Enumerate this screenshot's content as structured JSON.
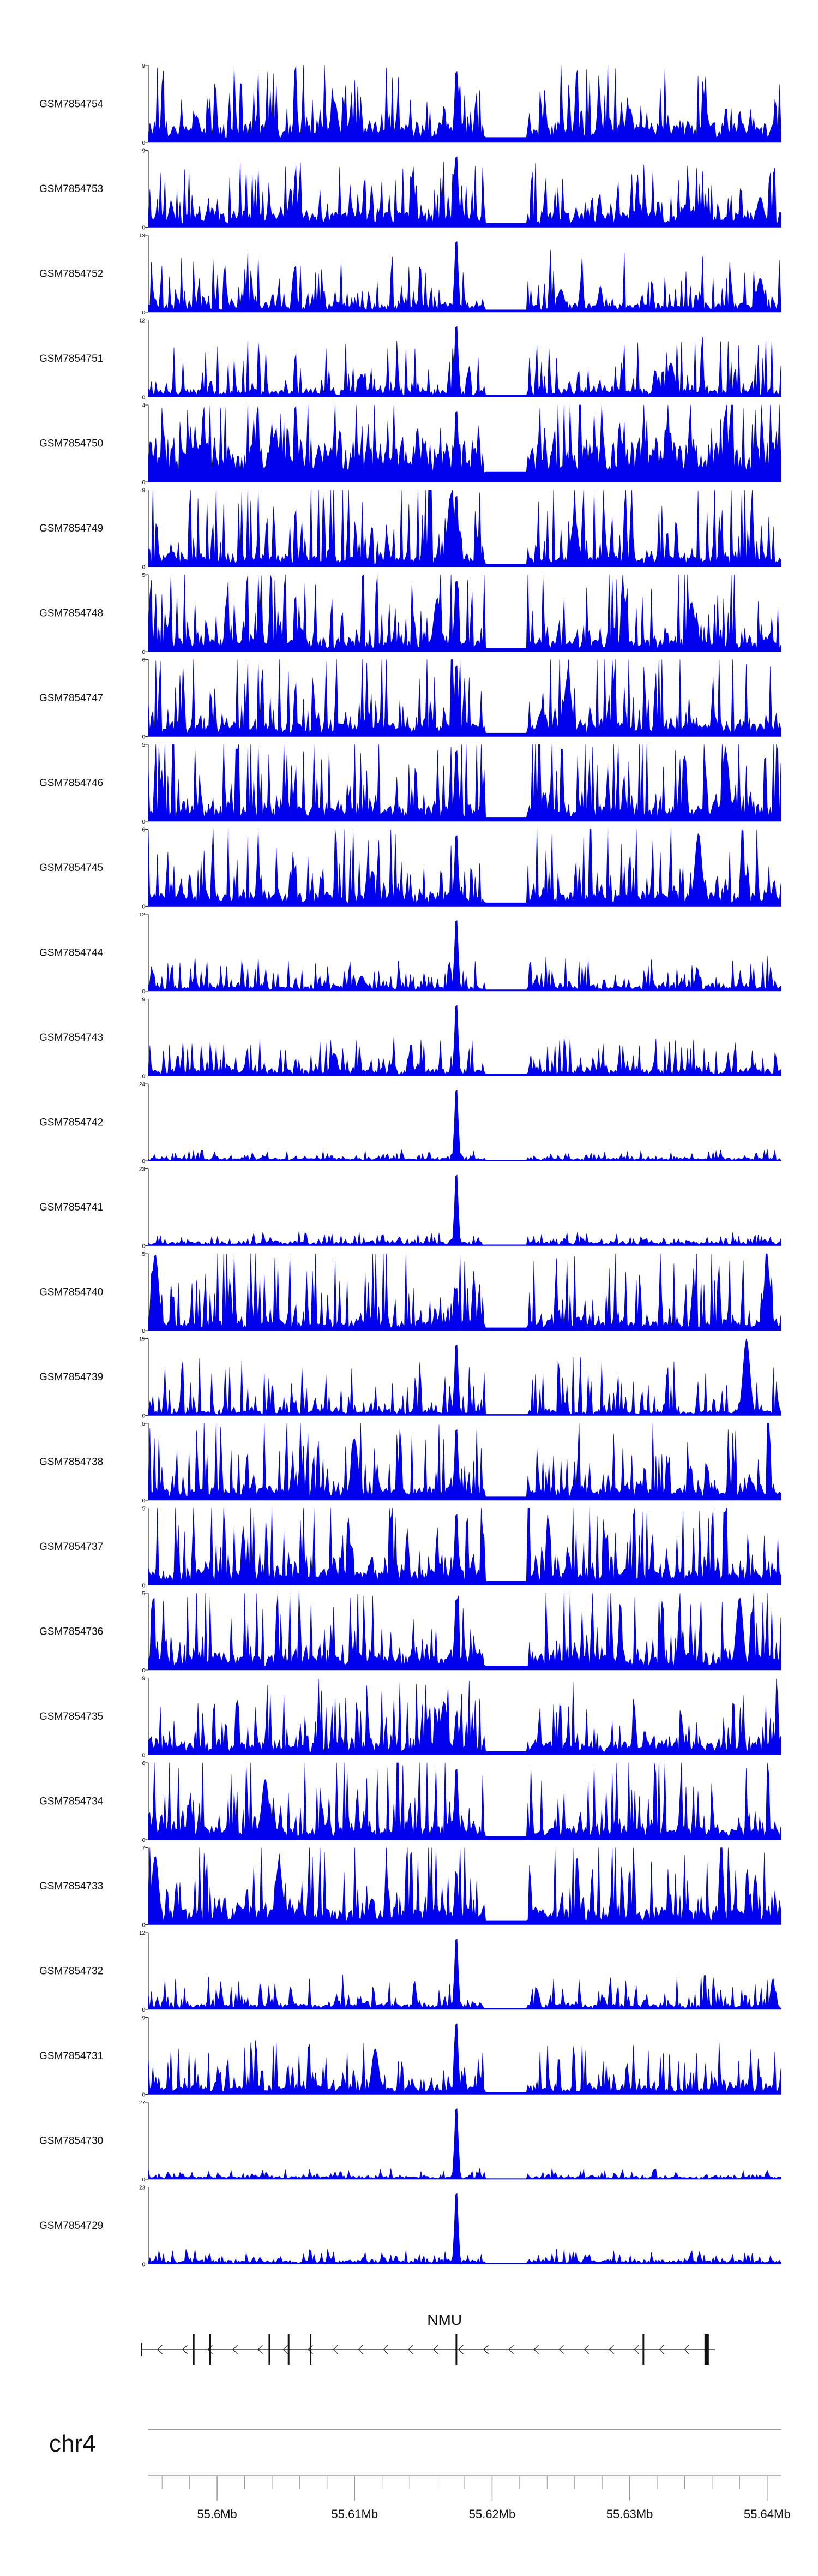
{
  "chart_data": {
    "type": "area",
    "title": "",
    "chromosome": "chr4",
    "gene": {
      "name": "NMU",
      "strand": "-",
      "start": 55.5945,
      "end": 55.6362,
      "exons": [
        55.5983,
        55.5995,
        55.6038,
        55.6052,
        55.6068,
        55.6174,
        55.631,
        55.6356
      ]
    },
    "xlim": [
      55.595,
      55.641
    ],
    "xticks": [
      55.6,
      55.61,
      55.62,
      55.63,
      55.64
    ],
    "xtick_labels": [
      "55.6Mb",
      "55.61Mb",
      "55.62Mb",
      "55.63Mb",
      "55.64Mb"
    ],
    "xlabel": "",
    "ylabel": "",
    "gap_region": [
      55.6195,
      55.6225
    ],
    "tracks": [
      {
        "name": "GSM7854754",
        "ymax": 9,
        "peak": 9,
        "bg": 0.22,
        "noise": 0.55,
        "vars": [
          [
            55.6085,
            0.55
          ],
          [
            55.5985,
            0.35
          ],
          [
            55.6355,
            0.45
          ],
          [
            55.63,
            0.45
          ]
        ]
      },
      {
        "name": "GSM7854753",
        "ymax": 9,
        "peak": 9,
        "bg": 0.18,
        "noise": 0.45,
        "vars": [
          [
            55.6195,
            0.3
          ],
          [
            55.6395,
            0.4
          ]
        ]
      },
      {
        "name": "GSM7854752",
        "ymax": 13,
        "peak": 13,
        "bg": 0.1,
        "noise": 0.45,
        "vars": [
          [
            55.6395,
            0.45
          ],
          [
            55.625,
            0.3
          ]
        ]
      },
      {
        "name": "GSM7854751",
        "ymax": 12,
        "peak": 12,
        "bg": 0.08,
        "noise": 0.45,
        "vars": [
          [
            55.6105,
            0.3
          ],
          [
            55.633,
            0.45
          ]
        ]
      },
      {
        "name": "GSM7854750",
        "ymax": 4,
        "peak": 4,
        "bg": 0.45,
        "noise": 0.55,
        "vars": [
          [
            55.604,
            0.6
          ]
        ]
      },
      {
        "name": "GSM7854749",
        "ymax": 9,
        "peak": 9,
        "bg": 0.12,
        "noise": 0.75,
        "vars": [
          [
            55.617,
            0.95
          ],
          [
            55.626,
            0.65
          ]
        ]
      },
      {
        "name": "GSM7854748",
        "ymax": 5,
        "peak": 5,
        "bg": 0.14,
        "noise": 0.75,
        "vars": [
          [
            55.616,
            0.7
          ],
          [
            55.6345,
            0.65
          ]
        ]
      },
      {
        "name": "GSM7854747",
        "ymax": 6,
        "peak": 6,
        "bg": 0.15,
        "noise": 0.75,
        "vars": [
          [
            55.6255,
            0.8
          ]
        ]
      },
      {
        "name": "GSM7854746",
        "ymax": 5,
        "peak": 5,
        "bg": 0.18,
        "noise": 0.75,
        "vars": [
          [
            55.637,
            0.9
          ]
        ]
      },
      {
        "name": "GSM7854745",
        "ymax": 6,
        "peak": 6,
        "bg": 0.15,
        "noise": 0.75,
        "vars": [
          [
            55.635,
            0.95
          ]
        ]
      },
      {
        "name": "GSM7854744",
        "ymax": 12,
        "peak": 12,
        "bg": 0.06,
        "noise": 0.25,
        "vars": [
          [
            55.6105,
            0.2
          ]
        ]
      },
      {
        "name": "GSM7854743",
        "ymax": 9,
        "peak": 9,
        "bg": 0.08,
        "noise": 0.3,
        "vars": [
          [
            55.6085,
            0.3
          ]
        ]
      },
      {
        "name": "GSM7854742",
        "ymax": 24,
        "peak": 24,
        "bg": 0.03,
        "noise": 0.08,
        "vars": []
      },
      {
        "name": "GSM7854741",
        "ymax": 23,
        "peak": 23,
        "bg": 0.04,
        "noise": 0.1,
        "vars": []
      },
      {
        "name": "GSM7854740",
        "ymax": 5,
        "peak": 3,
        "bg": 0.12,
        "noise": 0.7,
        "vars": [
          [
            55.5955,
            1.0
          ],
          [
            55.64,
            0.85
          ]
        ]
      },
      {
        "name": "GSM7854739",
        "ymax": 15,
        "peak": 15,
        "bg": 0.05,
        "noise": 0.45,
        "vars": [
          [
            55.6385,
            1.0
          ]
        ]
      },
      {
        "name": "GSM7854738",
        "ymax": 5,
        "peak": 5,
        "bg": 0.15,
        "noise": 0.7,
        "vars": [
          [
            55.61,
            0.8
          ]
        ]
      },
      {
        "name": "GSM7854737",
        "ymax": 5,
        "peak": 5,
        "bg": 0.18,
        "noise": 0.7,
        "vars": []
      },
      {
        "name": "GSM7854736",
        "ymax": 5,
        "peak": 5,
        "bg": 0.18,
        "noise": 0.7,
        "vars": [
          [
            55.638,
            0.95
          ]
        ]
      },
      {
        "name": "GSM7854735",
        "ymax": 9,
        "peak": 5,
        "bg": 0.15,
        "noise": 0.55,
        "vars": [
          [
            55.6165,
            0.7
          ]
        ]
      },
      {
        "name": "GSM7854734",
        "ymax": 6,
        "peak": 6,
        "bg": 0.15,
        "noise": 0.75,
        "vars": [
          [
            55.6035,
            0.8
          ]
        ]
      },
      {
        "name": "GSM7854733",
        "ymax": 7,
        "peak": 5,
        "bg": 0.18,
        "noise": 0.7,
        "vars": [
          [
            55.5955,
            0.9
          ],
          [
            55.6045,
            0.8
          ]
        ]
      },
      {
        "name": "GSM7854732",
        "ymax": 12,
        "peak": 12,
        "bg": 0.06,
        "noise": 0.25,
        "vars": []
      },
      {
        "name": "GSM7854731",
        "ymax": 9,
        "peak": 9,
        "bg": 0.1,
        "noise": 0.4,
        "vars": [
          [
            55.6115,
            0.6
          ]
        ]
      },
      {
        "name": "GSM7854730",
        "ymax": 27,
        "peak": 27,
        "bg": 0.03,
        "noise": 0.07,
        "vars": []
      },
      {
        "name": "GSM7854729",
        "ymax": 23,
        "peak": 23,
        "bg": 0.04,
        "noise": 0.1,
        "vars": []
      }
    ],
    "colors": {
      "fill": "#0000ee",
      "axis": "#333333",
      "text": "#111111",
      "gene": "#111111",
      "ideogram": "#999999"
    }
  }
}
